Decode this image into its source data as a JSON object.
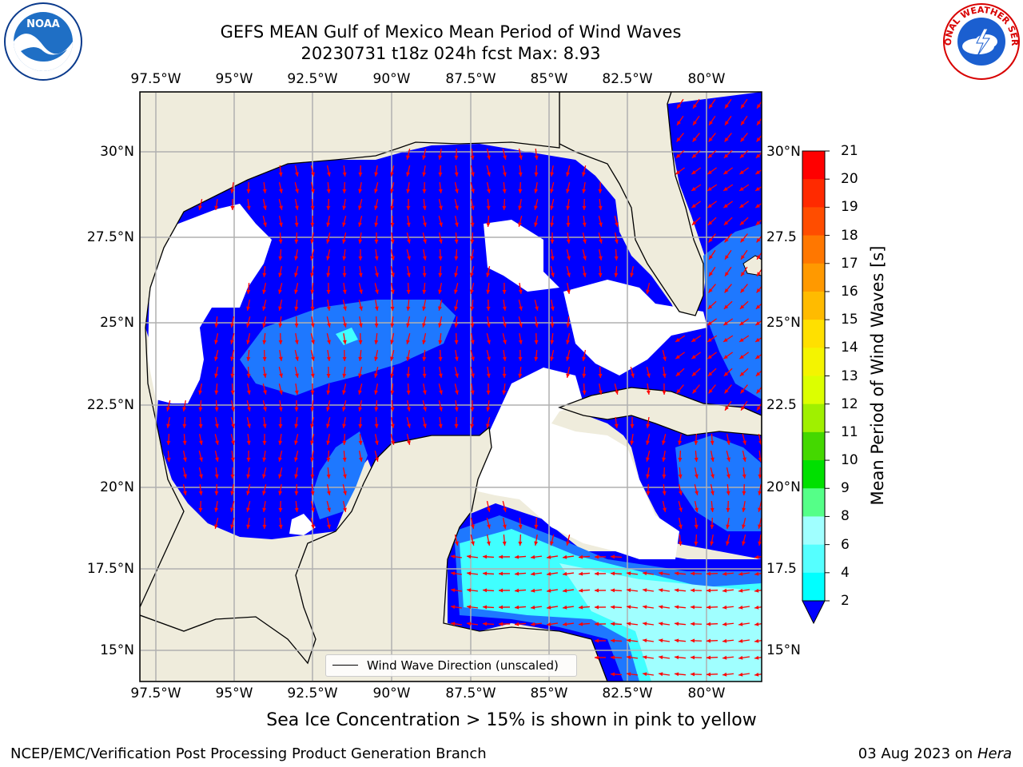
{
  "title_line1": "GEFS MEAN Gulf of Mexico Mean Period of Wind Waves",
  "title_line2": "20230731 t18z 024h fcst   Max: 8.93",
  "lon_ticks": [
    "97.5°W",
    "95°W",
    "92.5°W",
    "90°W",
    "87.5°W",
    "85°W",
    "82.5°W",
    "80°W"
  ],
  "lat_ticks_left": [
    "30°N",
    "27.5°N",
    "25°N",
    "22.5°N",
    "20°N",
    "17.5°N",
    "15°N"
  ],
  "lat_ticks_right": [
    "30°N",
    "27.5",
    "25°N",
    "22.5",
    "20°N",
    "17.5",
    "15°N"
  ],
  "colorbar": {
    "label": "Mean Period of Wind Waves [s]",
    "ticks": [
      "21",
      "20",
      "19",
      "18",
      "17",
      "16",
      "15",
      "14",
      "13",
      "12",
      "11",
      "10",
      "9",
      "8",
      "6",
      "4",
      "2"
    ],
    "colors": [
      "#ff0000",
      "#ff2a00",
      "#ff4d00",
      "#ff7700",
      "#ff9900",
      "#ffbb00",
      "#ffe000",
      "#f4f400",
      "#dcff00",
      "#a0f000",
      "#44d800",
      "#00e000",
      "#55ff88",
      "#a0ffff",
      "#55ffff",
      "#00ffff",
      "#0078ff"
    ],
    "extend_color": "#0000ff"
  },
  "legend": {
    "label": "Wind Wave Direction (unscaled)"
  },
  "caption": "Sea Ice Concentration > 15% is shown in pink to yellow",
  "footer_left": "NCEP/EMC/Verification Post Processing Product Generation Branch",
  "footer_date": "03 Aug 2023 on",
  "footer_host": "Hera",
  "logos": {
    "left": "NOAA",
    "right": "NATIONAL WEATHER SERVICE"
  },
  "colors": {
    "land": "#efecdc",
    "ocean_deep": "#0000ff",
    "ocean_mid": "#1e78ff",
    "ocean_light": "#40ffff",
    "ocean_pale": "#a0ffff",
    "arrow": "#ff0000",
    "grid": "#b0b0b0"
  }
}
